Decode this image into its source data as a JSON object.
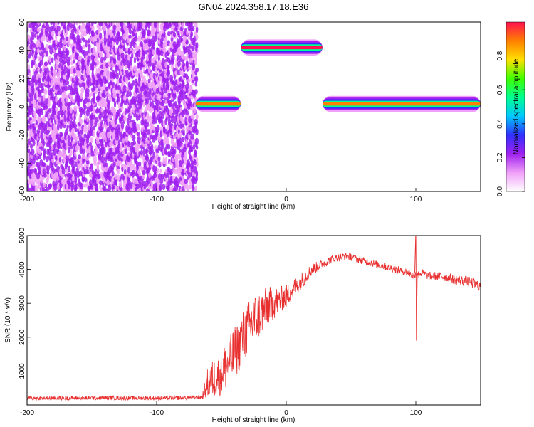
{
  "title": "GN04.2024.358.17.18.E36",
  "chart_data": [
    {
      "type": "heatmap",
      "xlabel": "Height of straight line (km)",
      "ylabel": "Frequency (Hz)",
      "xlim": [
        -200,
        150
      ],
      "ylim": [
        -60,
        60
      ],
      "xticks": [
        -200,
        -100,
        0,
        100
      ],
      "yticks": [
        -60,
        -40,
        -20,
        0,
        20,
        40,
        60
      ],
      "colorbar": {
        "label": "Normalized spectral amplitude",
        "range": [
          0,
          1
        ],
        "ticks": [
          "0.0",
          "0.2",
          "0.4",
          "0.6",
          "0.8"
        ],
        "colors": [
          "#ffffff",
          "#f0a0f8",
          "#a020f0",
          "#3030ff",
          "#00c8ff",
          "#00ff90",
          "#40ff00",
          "#ffe000",
          "#ff8000",
          "#ff1050"
        ]
      },
      "noise_region": {
        "x": [
          -200,
          -70
        ],
        "y": [
          -60,
          60
        ],
        "level": 0.15
      },
      "features": [
        {
          "x": [
            -70,
            -35
          ],
          "f": 2,
          "half_width": 3,
          "amplitude": 0.6
        },
        {
          "x": [
            -35,
            28
          ],
          "f": 42,
          "half_width": 3,
          "amplitude": 0.75
        },
        {
          "x": [
            28,
            150
          ],
          "f": 2,
          "half_width": 3,
          "amplitude": 0.65
        }
      ],
      "grid": false
    },
    {
      "type": "line",
      "xlabel": "Height of straight line (km)",
      "ylabel": "SNR (10 * v/v)",
      "xlim": [
        -200,
        150
      ],
      "ylim": [
        0,
        5000
      ],
      "xticks": [
        -200,
        -100,
        0,
        100
      ],
      "yticks": [
        1000,
        2000,
        3000,
        4000,
        5000
      ],
      "series": [
        {
          "color": "#e83030",
          "x": [
            -200,
            -180,
            -160,
            -140,
            -120,
            -100,
            -80,
            -65,
            -60,
            -55,
            -50,
            -45,
            -40,
            -35,
            -30,
            -25,
            -20,
            -15,
            -10,
            -5,
            0,
            5,
            10,
            15,
            20,
            25,
            30,
            35,
            40,
            45,
            50,
            55,
            60,
            70,
            80,
            90,
            95,
            98,
            100,
            102,
            105,
            110,
            120,
            130,
            140,
            150
          ],
          "y": [
            200,
            200,
            200,
            210,
            200,
            200,
            210,
            230,
            700,
            800,
            1000,
            1200,
            1500,
            1900,
            2200,
            2500,
            2700,
            2900,
            3000,
            3100,
            3200,
            3400,
            3600,
            3800,
            4000,
            4100,
            4200,
            4300,
            4350,
            4400,
            4380,
            4300,
            4250,
            4150,
            4050,
            3950,
            3900,
            3800,
            3900,
            3850,
            3900,
            3800,
            3800,
            3700,
            3650,
            3500
          ],
          "noise": [
            60,
            60,
            60,
            60,
            60,
            60,
            60,
            60,
            500,
            600,
            700,
            750,
            800,
            800,
            800,
            800,
            700,
            600,
            500,
            400,
            350,
            300,
            260,
            220,
            180,
            150,
            130,
            120,
            110,
            110,
            110,
            110,
            110,
            110,
            110,
            110,
            110,
            110,
            110,
            110,
            110,
            120,
            130,
            140,
            150,
            160
          ]
        }
      ],
      "spike": {
        "x": 100,
        "y_max": 5200,
        "y_min": 1900
      },
      "grid": false
    }
  ]
}
